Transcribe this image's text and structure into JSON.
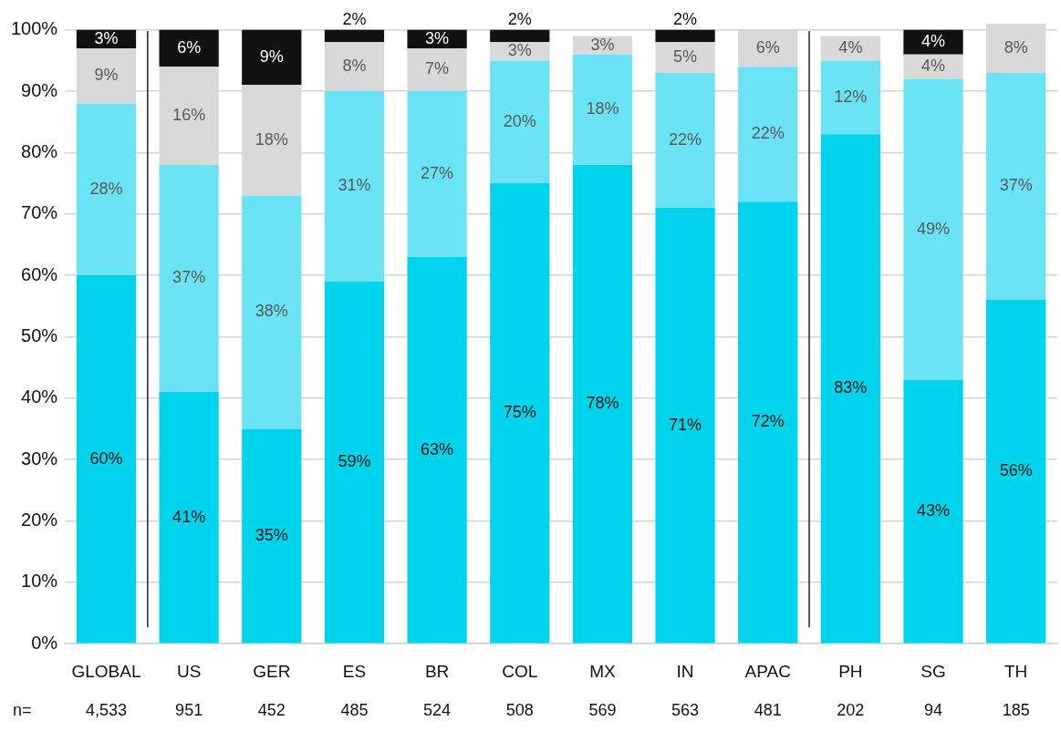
{
  "chart_data": {
    "type": "bar",
    "stacked": true,
    "grid": "y",
    "legend": false,
    "categories": [
      "GLOBAL",
      "US",
      "GER",
      "ES",
      "BR",
      "COL",
      "MX",
      "IN",
      "APAC",
      "PH",
      "SG",
      "TH"
    ],
    "series": [
      {
        "color": "#00d4ec",
        "values": [
          60,
          41,
          35,
          59,
          63,
          75,
          78,
          71,
          72,
          83,
          43,
          56
        ],
        "value_labels": [
          "60%",
          "41%",
          "35%",
          "59%",
          "63%",
          "75%",
          "78%",
          "71%",
          "72%",
          "83%",
          "43%",
          "56%"
        ]
      },
      {
        "color": "#6ae4f4",
        "values": [
          28,
          37,
          38,
          31,
          27,
          20,
          18,
          22,
          22,
          12,
          49,
          37
        ],
        "value_labels": [
          "28%",
          "37%",
          "38%",
          "31%",
          "27%",
          "20%",
          "18%",
          "22%",
          "22%",
          "12%",
          "49%",
          "37%"
        ]
      },
      {
        "color": "#d9d9d9",
        "values": [
          9,
          16,
          18,
          8,
          7,
          3,
          3,
          5,
          6,
          4,
          4,
          8
        ],
        "value_labels": [
          "9%",
          "16%",
          "18%",
          "8%",
          "7%",
          "3%",
          "3%",
          "5%",
          "6%",
          "4%",
          "4%",
          "8%"
        ]
      },
      {
        "color": "#111111",
        "values": [
          3,
          6,
          9,
          2,
          3,
          2,
          null,
          2,
          null,
          null,
          4,
          null
        ],
        "value_labels": [
          "3%",
          "6%",
          "9%",
          "2%",
          "3%",
          "2%",
          null,
          "2%",
          null,
          null,
          "4%",
          null
        ]
      }
    ],
    "ylim": [
      0,
      101
    ],
    "yticks": [
      {
        "value": 0,
        "label": "0%"
      },
      {
        "value": 10,
        "label": "10%"
      },
      {
        "value": 20,
        "label": "20%"
      },
      {
        "value": 30,
        "label": "30%"
      },
      {
        "value": 40,
        "label": "40%"
      },
      {
        "value": 50,
        "label": "50%"
      },
      {
        "value": 60,
        "label": "60%"
      },
      {
        "value": 70,
        "label": "70%"
      },
      {
        "value": 80,
        "label": "80%"
      },
      {
        "value": 90,
        "label": "90%"
      },
      {
        "value": 100,
        "label": "100%"
      }
    ],
    "annotations": [
      "n=",
      "4,533",
      "951",
      "452",
      "485",
      "524",
      "508",
      "569",
      "563",
      "481",
      "202",
      "94",
      "185"
    ]
  }
}
